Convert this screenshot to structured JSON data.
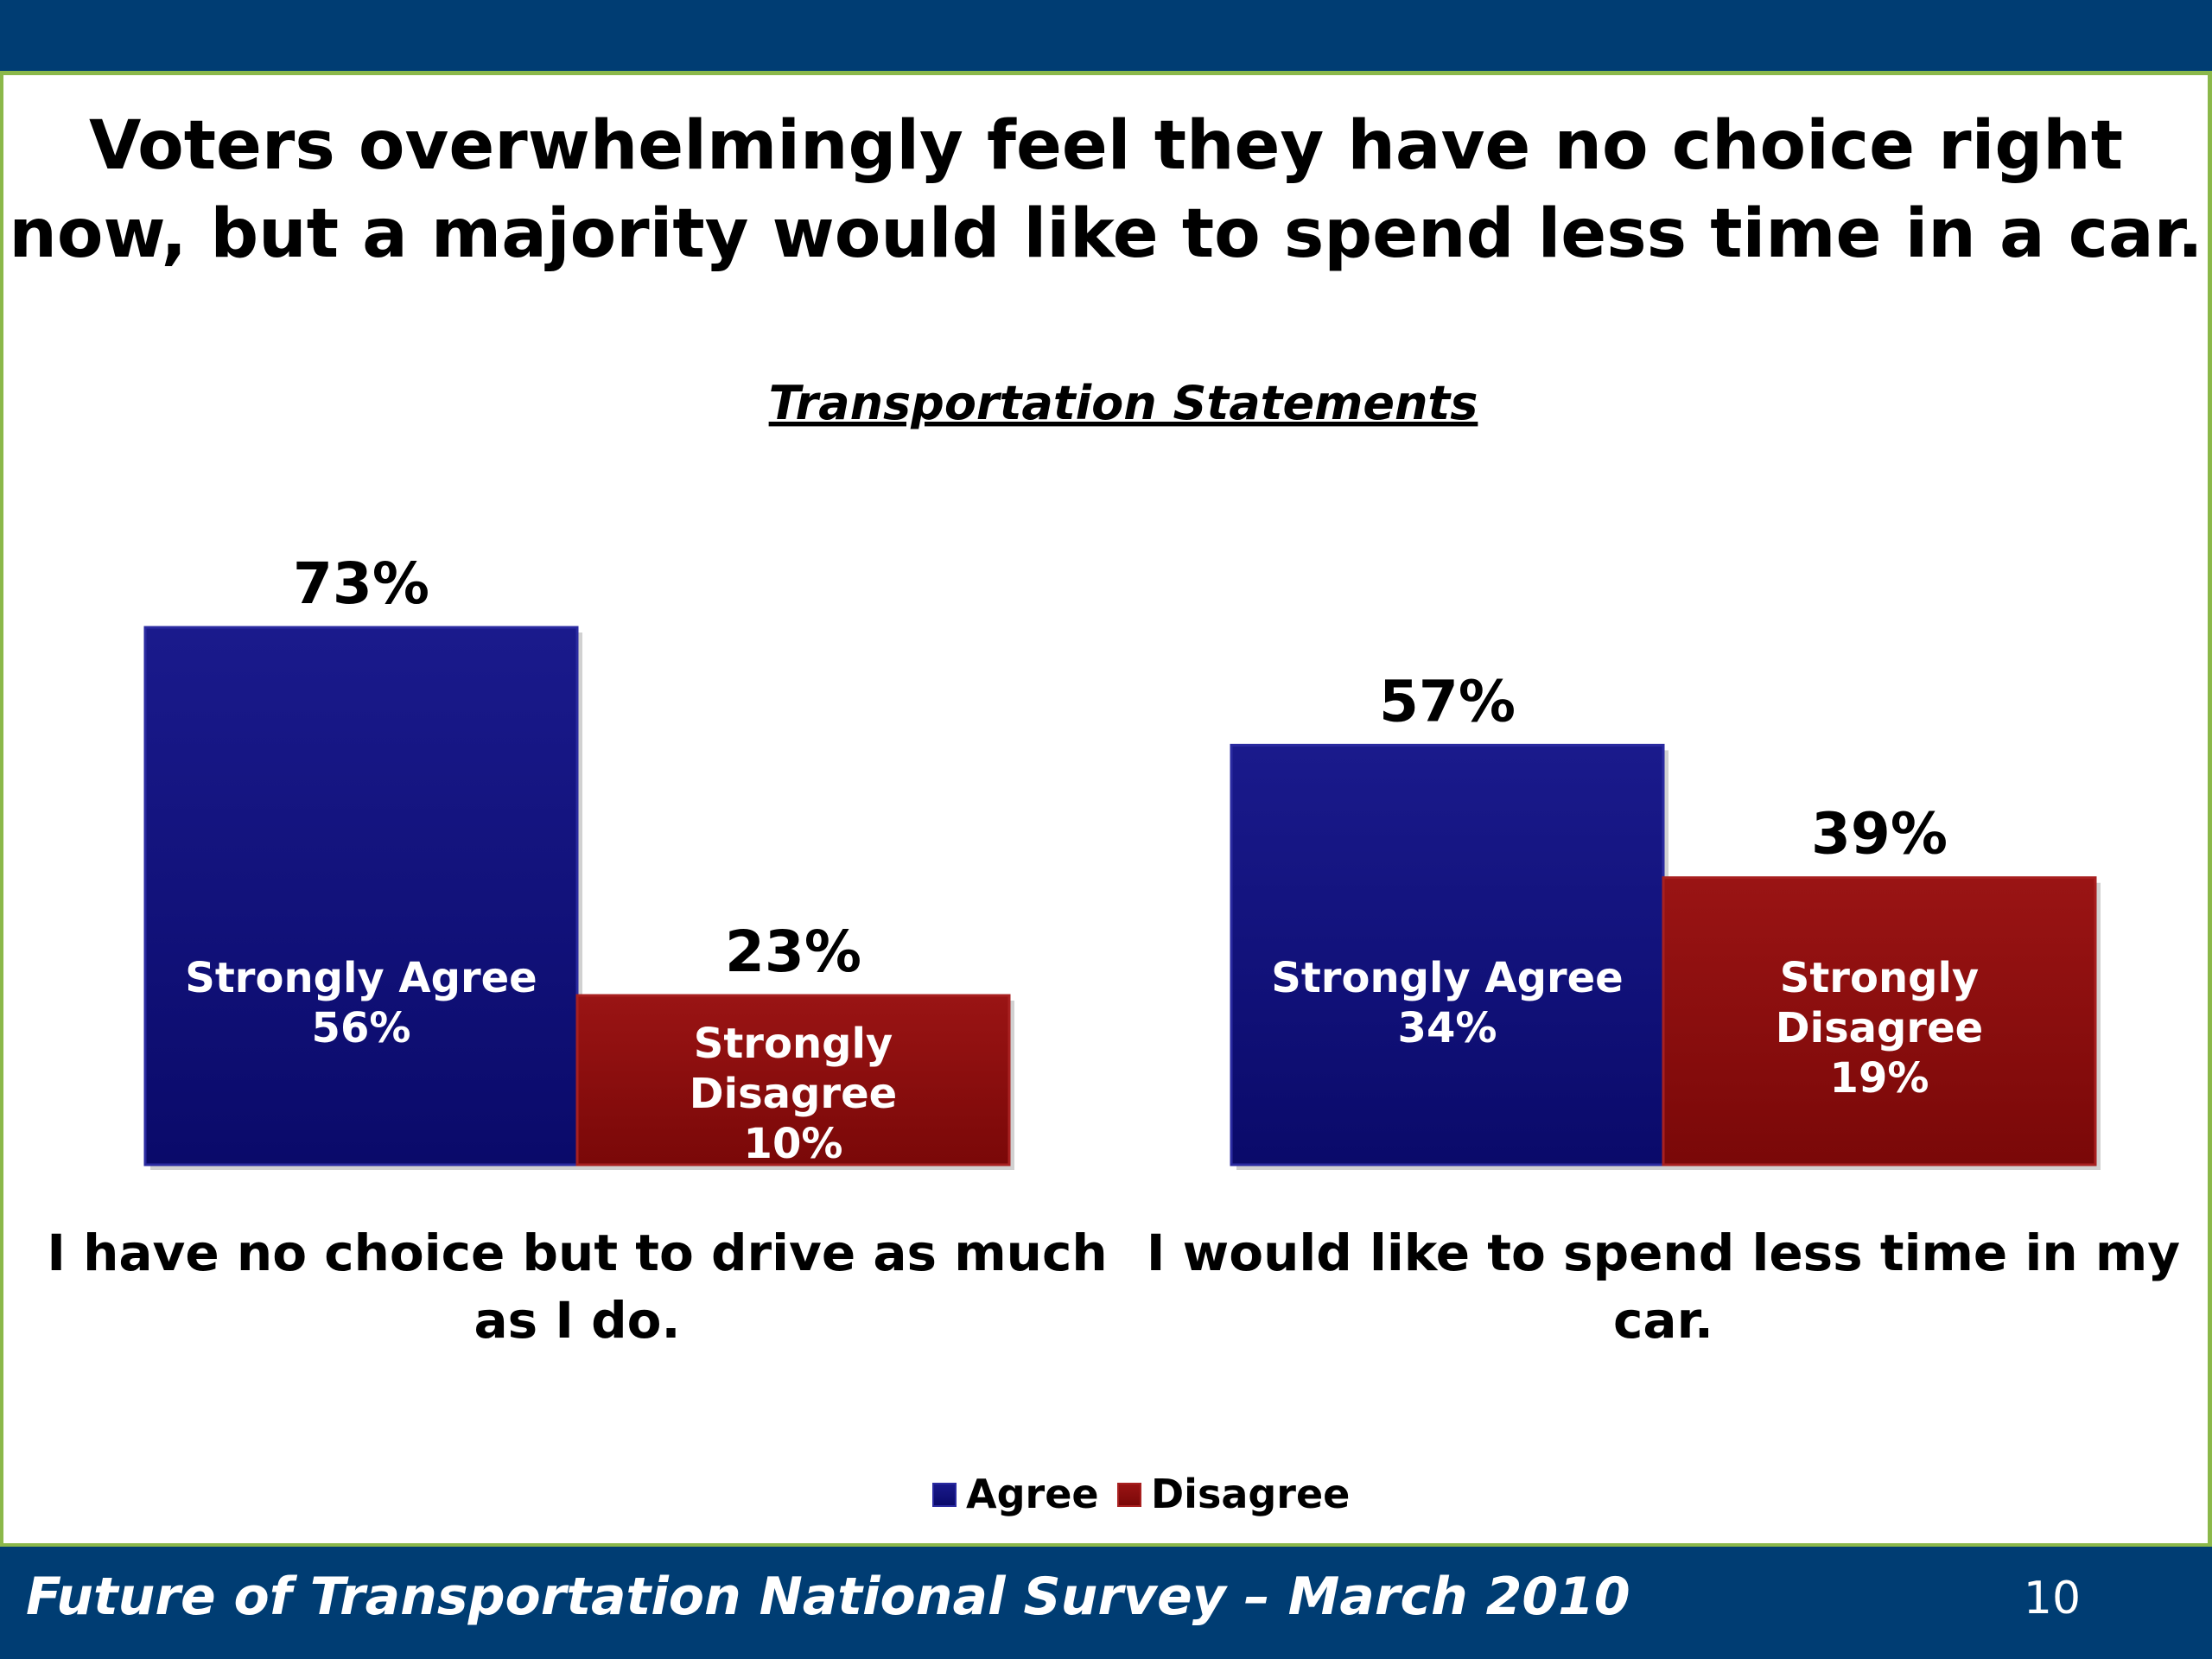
{
  "slide": {
    "title_line1": "Voters overwhelmingly feel they have no choice right",
    "title_line2": "now, but a majority would like to spend less time in a car.",
    "footer": "Future of Transportation National Survey – March 2010",
    "page_number": "10"
  },
  "colors": {
    "header_bar": "#003d73",
    "accent_line": "#8bb84a",
    "agree": "#0d0d78",
    "disagree": "#8b0a0a"
  },
  "chart_data": {
    "type": "bar",
    "title": "Transportation Statements",
    "categories": [
      [
        "I have no choice but to drive as much",
        "as I do."
      ],
      [
        "I would like to spend less time in my",
        "car."
      ]
    ],
    "series": [
      {
        "name": "Agree",
        "values": [
          73,
          57
        ],
        "total_labels": [
          "73%",
          "57%"
        ],
        "inner_labels": [
          [
            "Strongly Agree",
            "56%"
          ],
          [
            "Strongly Agree",
            "34%"
          ]
        ],
        "strongly_values": [
          56,
          34
        ]
      },
      {
        "name": "Disagree",
        "values": [
          23,
          39
        ],
        "total_labels": [
          "23%",
          "39%"
        ],
        "inner_labels": [
          [
            "Strongly",
            "Disagree",
            "10%"
          ],
          [
            "Strongly",
            "Disagree",
            "19%"
          ]
        ],
        "strongly_values": [
          10,
          19
        ]
      }
    ],
    "ylim": [
      0,
      100
    ],
    "grid": false,
    "legend_position": "bottom"
  }
}
